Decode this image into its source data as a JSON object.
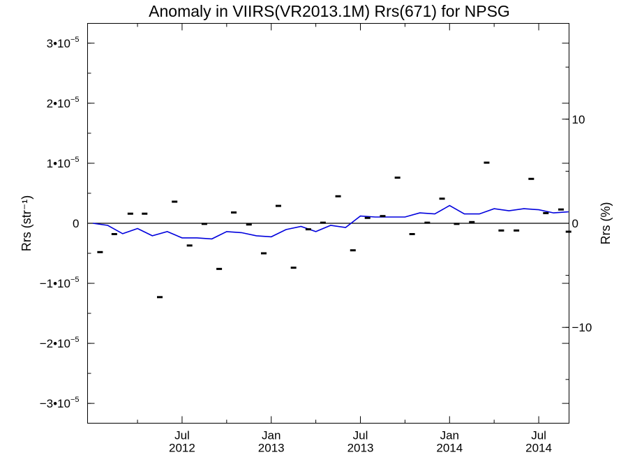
{
  "chart_data": {
    "type": "line",
    "title": "Anomaly in VIIRS(VR2013.1M) Rrs(671) for NPSG",
    "ylabel_left": "Rrs (str⁻¹)",
    "ylabel_right": "Rrs (%)",
    "x_ticks": [
      {
        "month": 2012.5,
        "line1": "Jul",
        "line2": "2012"
      },
      {
        "month": 2013.0,
        "line1": "Jan",
        "line2": "2013"
      },
      {
        "month": 2013.5,
        "line1": "Jul",
        "line2": "2013"
      },
      {
        "month": 2014.0,
        "line1": "Jan",
        "line2": "2014"
      },
      {
        "month": 2014.5,
        "line1": "Jul",
        "line2": "2014"
      }
    ],
    "xlim": [
      2011.97,
      2014.67
    ],
    "ylim_left": [
      -3.33e-05,
      3.33e-05
    ],
    "yticks_left": [
      {
        "value": 3e-05,
        "mant": "3•10",
        "exp": "−5"
      },
      {
        "value": 2e-05,
        "mant": "2•10",
        "exp": "−5"
      },
      {
        "value": 1e-05,
        "mant": "1•10",
        "exp": "−5"
      },
      {
        "value": 0,
        "mant": "0",
        "exp": ""
      },
      {
        "value": -1e-05,
        "mant": "−1•10",
        "exp": "−5"
      },
      {
        "value": -2e-05,
        "mant": "−2•10",
        "exp": "−5"
      },
      {
        "value": -3e-05,
        "mant": "−3•10",
        "exp": "−5"
      }
    ],
    "ylim_right": [
      -19.2,
      19.2
    ],
    "yticks_right": [
      {
        "value": 10,
        "label": "10"
      },
      {
        "value": 0,
        "label": "0"
      },
      {
        "value": -10,
        "label": "−10"
      }
    ],
    "zero_line": true,
    "series": [
      {
        "kind": "line",
        "color": "#0000dd",
        "axis": "right",
        "x": [
          2012.0,
          2012.083,
          2012.167,
          2012.25,
          2012.333,
          2012.417,
          2012.5,
          2012.583,
          2012.667,
          2012.75,
          2012.833,
          2012.917,
          2013.0,
          2013.083,
          2013.167,
          2013.25,
          2013.333,
          2013.417,
          2013.5,
          2013.583,
          2013.667,
          2013.75,
          2013.833,
          2013.917,
          2014.0,
          2014.083,
          2014.167,
          2014.25,
          2014.333,
          2014.417,
          2014.5,
          2014.583,
          2014.667
        ],
        "values": [
          0.0,
          -0.2,
          -1.0,
          -0.5,
          -1.2,
          -0.8,
          -1.4,
          -1.4,
          -1.5,
          -0.8,
          -0.9,
          -1.2,
          -1.3,
          -0.6,
          -0.3,
          -0.8,
          -0.2,
          -0.4,
          0.7,
          0.6,
          0.6,
          0.6,
          1.0,
          0.9,
          1.7,
          0.9,
          0.9,
          1.4,
          1.2,
          1.4,
          1.3,
          1.0,
          1.1
        ]
      },
      {
        "kind": "points",
        "color": "#000000",
        "axis": "left",
        "x": [
          2012.04,
          2012.12,
          2012.21,
          2012.29,
          2012.375,
          2012.458,
          2012.542,
          2012.625,
          2012.708,
          2012.79,
          2012.875,
          2012.958,
          2013.04,
          2013.125,
          2013.208,
          2013.29,
          2013.375,
          2013.458,
          2013.54,
          2013.625,
          2013.708,
          2013.79,
          2013.875,
          2013.958,
          2014.04,
          2014.125,
          2014.208,
          2014.29,
          2014.375,
          2014.458,
          2014.54,
          2014.625,
          2014.667
        ],
        "values": [
          -4.8e-06,
          -1.8e-06,
          1.6e-06,
          1.6e-06,
          -1.23e-05,
          3.6e-06,
          -3.7e-06,
          -1e-07,
          -7.6e-06,
          1.8e-06,
          -2e-07,
          -5e-06,
          2.9e-06,
          -7.4e-06,
          -1e-06,
          1e-07,
          4.5e-06,
          -4.5e-06,
          9e-07,
          1.2e-06,
          7.6e-06,
          -1.8e-06,
          1e-07,
          4.1e-06,
          -1e-07,
          2e-07,
          1.01e-05,
          -1.2e-06,
          -1.2e-06,
          7.4e-06,
          1.7e-06,
          2.3e-06,
          -1.4e-06
        ]
      }
    ]
  }
}
